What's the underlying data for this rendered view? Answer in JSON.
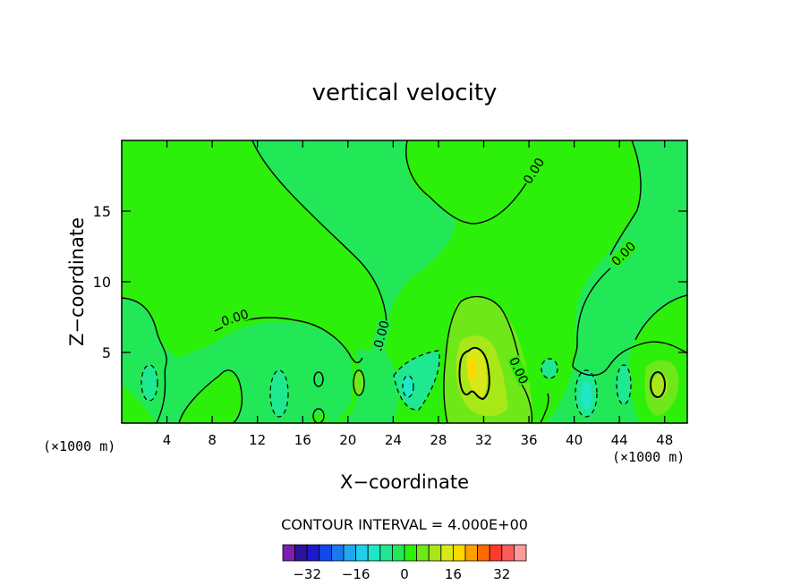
{
  "chart_data": {
    "type": "contour",
    "title": "vertical velocity",
    "xlabel": "X−coordinate",
    "ylabel": "Z−coordinate",
    "x_unit_label_left": "(×1000 m)",
    "x_unit_label_right": "(×1000 m)",
    "xlim": [
      0,
      50
    ],
    "ylim": [
      0,
      20
    ],
    "x_ticks": [
      4,
      8,
      12,
      16,
      20,
      24,
      28,
      32,
      36,
      40,
      44,
      48
    ],
    "y_ticks": [
      5,
      10,
      15
    ],
    "contour_label": "0.00",
    "contour_interval_text": "CONTOUR INTERVAL = 4.000E+00",
    "contour_interval": 4,
    "colorbar": {
      "levels": [
        -36,
        -32,
        -28,
        -24,
        -20,
        -16,
        -12,
        -8,
        -4,
        0,
        4,
        8,
        12,
        16,
        20,
        24,
        28,
        32,
        36
      ],
      "tick_labels": [
        "−32",
        "−16",
        "0",
        "16",
        "32"
      ],
      "tick_values": [
        -32,
        -16,
        0,
        16,
        32
      ],
      "colors": [
        "#7a1fb0",
        "#2a139a",
        "#1a1acc",
        "#1048ee",
        "#1a78f0",
        "#1ea8f0",
        "#1ed0e8",
        "#1ee8c8",
        "#1ee890",
        "#22e858",
        "#2cf00a",
        "#6ee818",
        "#a8e818",
        "#d8e818",
        "#ffd800",
        "#ffa000",
        "#ff6a00",
        "#ff3a2a",
        "#ff5a5a",
        "#ff9a9a"
      ]
    },
    "colors": {
      "negative_small": "#22e858",
      "positive_small": "#2cf00a",
      "positive_mid": "#6ee818",
      "positive_high": "#a8e818",
      "positive_peak": "#d8e818",
      "negative_mid": "#1ee890",
      "negative_high": "#1ee8c8"
    }
  }
}
